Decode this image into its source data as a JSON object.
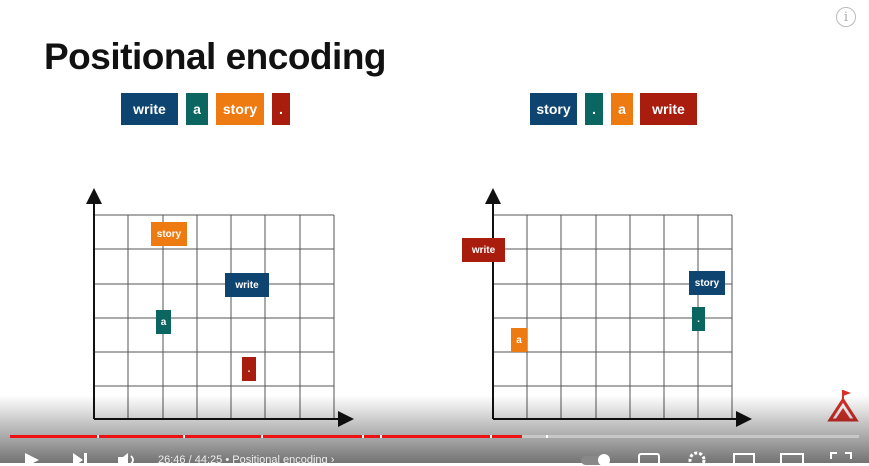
{
  "slide": {
    "title": "Positional encoding",
    "sequence_left": [
      "write",
      "a",
      "story",
      "."
    ],
    "sequence_right": [
      "story",
      ".",
      "a",
      "write"
    ],
    "plot_left_tokens": [
      "story",
      "write",
      "a",
      "."
    ],
    "plot_right_tokens": [
      "write",
      "story",
      "a",
      "."
    ]
  },
  "player": {
    "current_time": "26:46",
    "duration": "44:25",
    "chapter": "Positional encoding",
    "progress": 0.603,
    "icons": [
      "play-icon",
      "next-icon",
      "volume-icon",
      "autoplay-toggle-icon",
      "captions-icon",
      "settings-icon",
      "miniplayer-icon",
      "theater-icon",
      "fullscreen-icon"
    ]
  },
  "colors": {
    "write": "#0e4470",
    "a": "#0b6560",
    "story": "#ee7b12",
    "period": "#a91d0f"
  }
}
